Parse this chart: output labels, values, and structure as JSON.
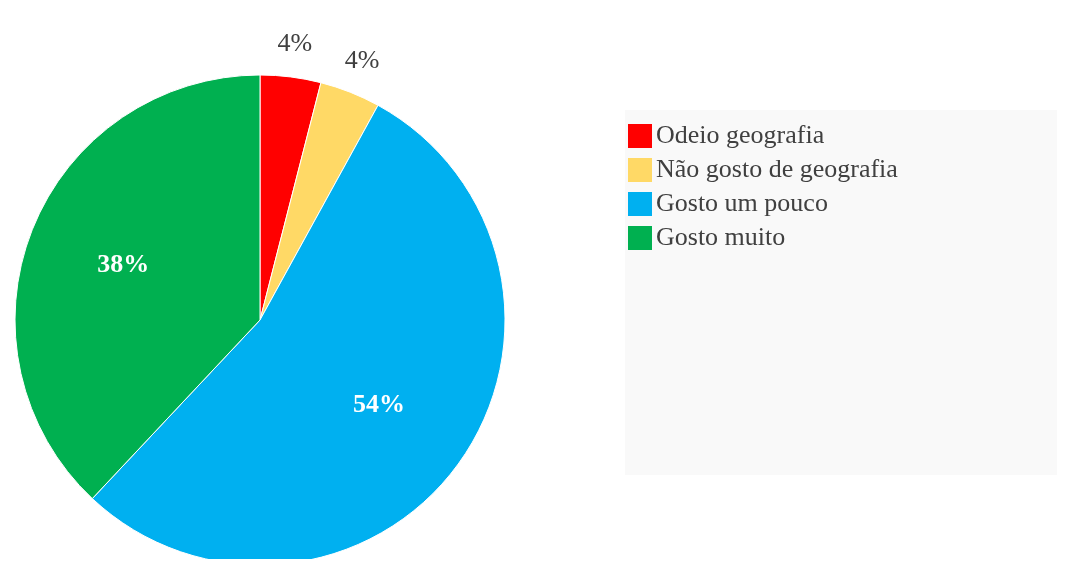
{
  "chart_data": {
    "type": "pie",
    "categories": [
      "Odeio geografia",
      "Não gosto de geografia",
      "Gosto um pouco",
      "Gosto muito"
    ],
    "values": [
      4,
      4,
      54,
      38
    ],
    "colors": [
      "#ff0000",
      "#ffd966",
      "#00b0f0",
      "#00b050"
    ],
    "value_labels": [
      "4%",
      "4%",
      "54%",
      "38%"
    ],
    "legend": "right"
  }
}
